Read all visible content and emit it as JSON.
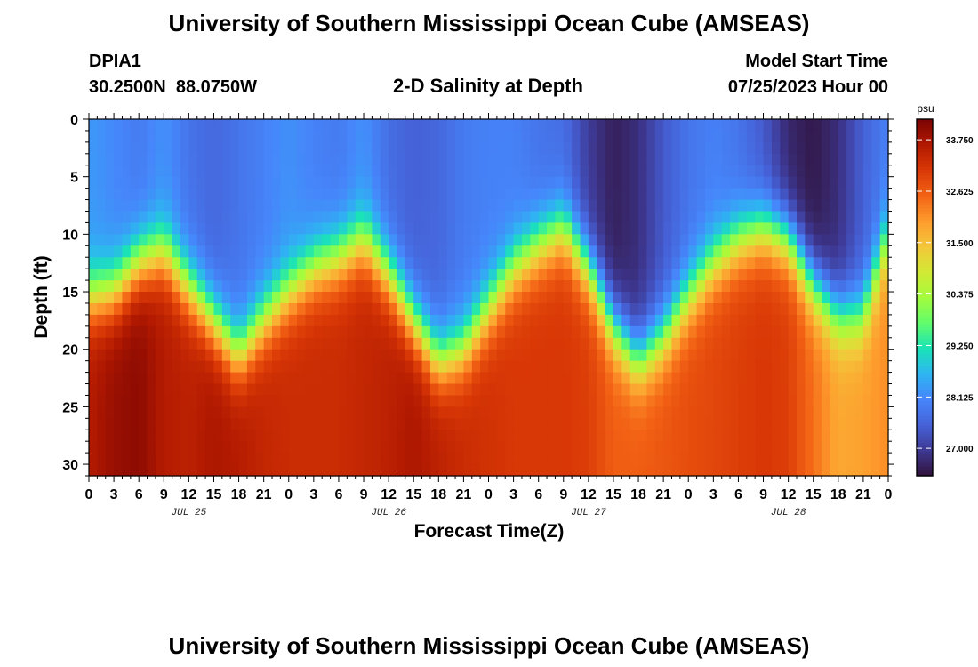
{
  "header": {
    "title": "University of Southern Mississippi Ocean Cube (AMSEAS)",
    "station_id": "DPIA1",
    "coordinates": "30.2500N  88.0750W",
    "plot_title": "2-D Salinity at Depth",
    "model_start_label": "Model Start Time",
    "model_start_value": "07/25/2023 Hour 00"
  },
  "footer": {
    "title": "University of Southern Mississippi Ocean Cube (AMSEAS)"
  },
  "colors": {
    "scale": [
      "#30123b",
      "#3e3994",
      "#4662d8",
      "#4686fb",
      "#2eb5f2",
      "#1ae4b6",
      "#62fc6b",
      "#a4fc3c",
      "#d2e935",
      "#f4c63a",
      "#fe9b2d",
      "#f36315",
      "#d93806",
      "#b11901",
      "#7a0403"
    ]
  },
  "chart_data": {
    "type": "heatmap",
    "ylabel": "Depth (ft)",
    "xlabel": "Forecast Time(Z)",
    "x_ticks": [
      "0",
      "3",
      "6",
      "9",
      "12",
      "15",
      "18",
      "21",
      "0",
      "3",
      "6",
      "9",
      "12",
      "15",
      "18",
      "21",
      "0",
      "3",
      "6",
      "9",
      "12",
      "15",
      "18",
      "21",
      "0",
      "3",
      "6",
      "9",
      "12",
      "15",
      "18",
      "21",
      "0"
    ],
    "x_range_hours": [
      0,
      96
    ],
    "day_labels": [
      {
        "label": "JUL 25",
        "hour": 12
      },
      {
        "label": "JUL 26",
        "hour": 36
      },
      {
        "label": "JUL 27",
        "hour": 60
      },
      {
        "label": "JUL 28",
        "hour": 84
      }
    ],
    "y_ticks": [
      0,
      5,
      10,
      15,
      20,
      25,
      30
    ],
    "y_range_ft": [
      0,
      31
    ],
    "y_inverted": true,
    "colorbar": {
      "unit": "psu",
      "min": 26.4,
      "max": 34.2,
      "ticks": [
        "33.750",
        "32.625",
        "31.500",
        "30.375",
        "29.250",
        "28.125",
        "27.000"
      ]
    },
    "halocline_depth_ft": [
      [
        0,
        15.5
      ],
      [
        3,
        15.0
      ],
      [
        6,
        12.5
      ],
      [
        9,
        11.5
      ],
      [
        12,
        14.5
      ],
      [
        15,
        17.5
      ],
      [
        18,
        20.5
      ],
      [
        21,
        17.5
      ],
      [
        24,
        15.0
      ],
      [
        27,
        13.0
      ],
      [
        30,
        12.0
      ],
      [
        33,
        10.5
      ],
      [
        36,
        13.5
      ],
      [
        39,
        17.5
      ],
      [
        42,
        21.0
      ],
      [
        45,
        20.0
      ],
      [
        48,
        16.5
      ],
      [
        51,
        13.0
      ],
      [
        54,
        11.0
      ],
      [
        57,
        9.5
      ],
      [
        60,
        13.0
      ],
      [
        63,
        18.0
      ],
      [
        66,
        21.0
      ],
      [
        69,
        19.0
      ],
      [
        72,
        15.5
      ],
      [
        75,
        12.5
      ],
      [
        78,
        10.5
      ],
      [
        81,
        9.5
      ],
      [
        84,
        10.5
      ],
      [
        87,
        14.5
      ],
      [
        90,
        17.0
      ],
      [
        93,
        17.0
      ],
      [
        96,
        10.0
      ]
    ],
    "surface_salinity_psu": [
      [
        0,
        28.3
      ],
      [
        3,
        28.1
      ],
      [
        6,
        27.9
      ],
      [
        9,
        28.2
      ],
      [
        12,
        27.8
      ],
      [
        15,
        27.6
      ],
      [
        18,
        27.8
      ],
      [
        21,
        28.0
      ],
      [
        24,
        28.2
      ],
      [
        27,
        28.0
      ],
      [
        30,
        27.9
      ],
      [
        33,
        28.2
      ],
      [
        36,
        27.7
      ],
      [
        39,
        27.5
      ],
      [
        42,
        27.6
      ],
      [
        45,
        27.9
      ],
      [
        48,
        28.0
      ],
      [
        51,
        28.0
      ],
      [
        54,
        27.8
      ],
      [
        57,
        27.7
      ],
      [
        60,
        27.0
      ],
      [
        63,
        26.6
      ],
      [
        66,
        26.8
      ],
      [
        69,
        27.4
      ],
      [
        72,
        27.8
      ],
      [
        75,
        28.0
      ],
      [
        78,
        27.8
      ],
      [
        81,
        27.4
      ],
      [
        84,
        26.7
      ],
      [
        87,
        26.5
      ],
      [
        90,
        26.8
      ],
      [
        93,
        27.5
      ],
      [
        96,
        28.0
      ]
    ],
    "bottom_salinity_psu": [
      [
        0,
        33.6
      ],
      [
        3,
        33.9
      ],
      [
        6,
        34.0
      ],
      [
        9,
        33.6
      ],
      [
        12,
        33.5
      ],
      [
        15,
        33.7
      ],
      [
        18,
        33.6
      ],
      [
        21,
        33.4
      ],
      [
        24,
        33.3
      ],
      [
        27,
        33.3
      ],
      [
        30,
        33.3
      ],
      [
        33,
        33.4
      ],
      [
        36,
        33.5
      ],
      [
        39,
        33.7
      ],
      [
        42,
        33.5
      ],
      [
        45,
        33.3
      ],
      [
        48,
        33.2
      ],
      [
        51,
        33.1
      ],
      [
        54,
        33.1
      ],
      [
        57,
        33.1
      ],
      [
        60,
        33.0
      ],
      [
        63,
        32.6
      ],
      [
        66,
        32.6
      ],
      [
        69,
        32.7
      ],
      [
        72,
        32.8
      ],
      [
        75,
        32.9
      ],
      [
        78,
        33.0
      ],
      [
        81,
        33.1
      ],
      [
        84,
        33.0
      ],
      [
        87,
        32.4
      ],
      [
        90,
        31.8
      ],
      [
        93,
        31.9
      ],
      [
        96,
        32.1
      ]
    ]
  }
}
